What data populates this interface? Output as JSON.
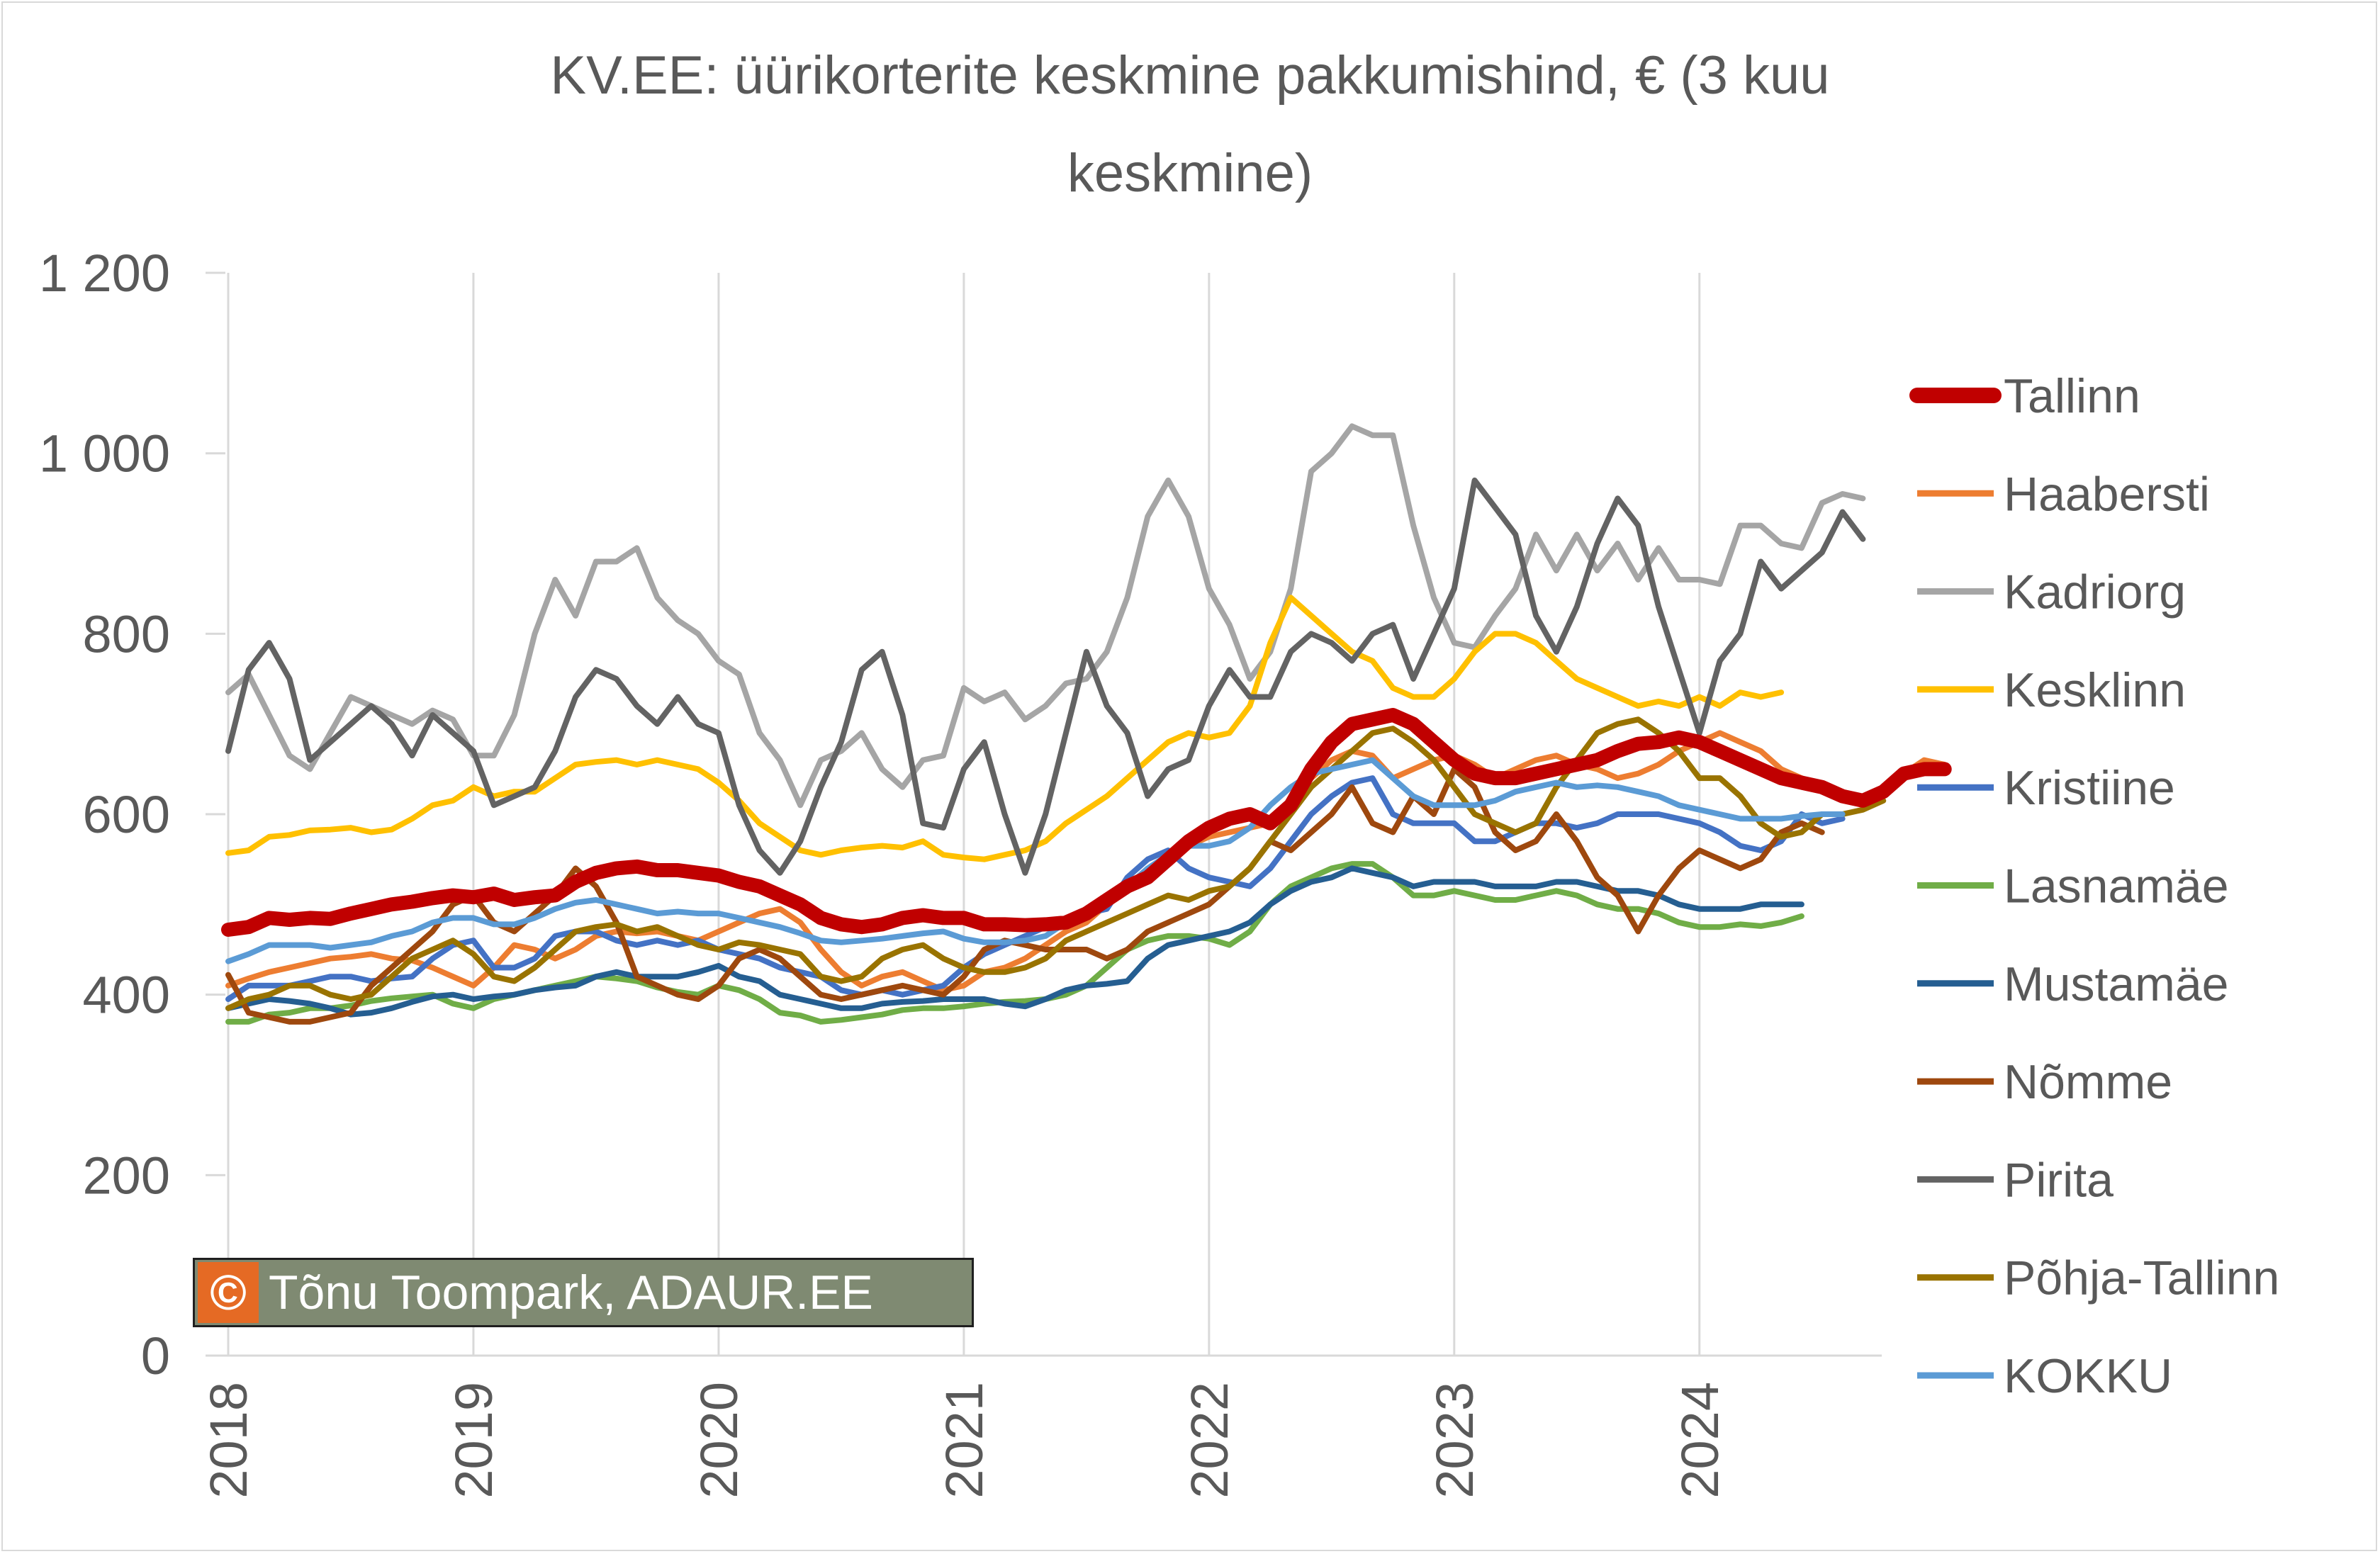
{
  "chart_data": {
    "type": "line",
    "title": "KV.EE: üürikorterite keskmine pakkumishind, € (3 kuu keskmine)",
    "title_lines": [
      "KV.EE: üürikorterite keskmine pakkumishind, € (3 kuu",
      "keskmine)"
    ],
    "xlabel": "",
    "ylabel": "",
    "x_start": "2018-01",
    "x_ticks": [
      "2018",
      "2019",
      "2020",
      "2021",
      "2022",
      "2023",
      "2024"
    ],
    "y_ticks": [
      "0",
      "200",
      "400",
      "600",
      "800",
      "1 000",
      "1 200"
    ],
    "ylim": [
      0,
      1200
    ],
    "grid": "vertical",
    "legend_position": "right",
    "series": [
      {
        "name": "Tallinn",
        "color": "#c00000",
        "width": "bold",
        "values": [
          472,
          475,
          485,
          483,
          485,
          484,
          490,
          495,
          500,
          503,
          507,
          510,
          508,
          512,
          505,
          508,
          510,
          525,
          535,
          540,
          542,
          538,
          538,
          535,
          532,
          525,
          520,
          510,
          500,
          485,
          478,
          475,
          478,
          485,
          488,
          485,
          485,
          478,
          478,
          477,
          478,
          480,
          490,
          505,
          520,
          530,
          550,
          570,
          585,
          595,
          600,
          590,
          610,
          650,
          680,
          700,
          705,
          710,
          700,
          680,
          660,
          645,
          640,
          640,
          645,
          650,
          655,
          660,
          670,
          678,
          680,
          685,
          680,
          670,
          660,
          650,
          640,
          635,
          630,
          620,
          615,
          625,
          645,
          650,
          650
        ]
      },
      {
        "name": "Haabersti",
        "color": "#ed7d31",
        "values": [
          410,
          418,
          425,
          430,
          435,
          440,
          442,
          445,
          440,
          438,
          430,
          420,
          410,
          430,
          455,
          450,
          440,
          450,
          465,
          470,
          468,
          470,
          465,
          460,
          470,
          480,
          490,
          495,
          480,
          450,
          425,
          410,
          420,
          425,
          415,
          405,
          410,
          425,
          430,
          440,
          455,
          470,
          480,
          500,
          515,
          525,
          545,
          565,
          575,
          580,
          585,
          590,
          610,
          640,
          660,
          670,
          665,
          640,
          650,
          660,
          665,
          655,
          640,
          650,
          660,
          665,
          655,
          650,
          640,
          645,
          655,
          670,
          680,
          690,
          680,
          670,
          650,
          640,
          630,
          625,
          615,
          625,
          645,
          660,
          655
        ]
      },
      {
        "name": "Kadriorg",
        "color": "#a5a5a5",
        "values": [
          735,
          755,
          710,
          665,
          650,
          690,
          730,
          720,
          710,
          700,
          715,
          705,
          665,
          665,
          710,
          800,
          860,
          820,
          880,
          880,
          895,
          840,
          815,
          800,
          770,
          755,
          690,
          660,
          610,
          660,
          670,
          690,
          650,
          630,
          660,
          665,
          740,
          725,
          735,
          705,
          720,
          745,
          750,
          780,
          840,
          930,
          970,
          930,
          850,
          810,
          750,
          780,
          850,
          980,
          1000,
          1030,
          1020,
          1020,
          920,
          840,
          790,
          785,
          820,
          850,
          910,
          870,
          910,
          870,
          900,
          860,
          895,
          860,
          860,
          855,
          920,
          920,
          900,
          895,
          945,
          955,
          950
        ]
      },
      {
        "name": "Kesklinn",
        "color": "#ffc000",
        "values": [
          557,
          560,
          575,
          577,
          582,
          583,
          585,
          580,
          583,
          595,
          610,
          615,
          630,
          620,
          625,
          625,
          640,
          655,
          658,
          660,
          655,
          660,
          655,
          650,
          635,
          615,
          590,
          575,
          560,
          555,
          560,
          563,
          565,
          563,
          570,
          555,
          552,
          550,
          555,
          560,
          570,
          590,
          605,
          620,
          640,
          660,
          680,
          690,
          685,
          690,
          720,
          790,
          840,
          820,
          800,
          780,
          770,
          740,
          730,
          730,
          750,
          780,
          800,
          800,
          790,
          770,
          750,
          740,
          730,
          720,
          725,
          720,
          730,
          720,
          735,
          730,
          735
        ]
      },
      {
        "name": "Kristiine",
        "color": "#4472c4",
        "values": [
          395,
          410,
          410,
          410,
          415,
          420,
          420,
          415,
          418,
          420,
          440,
          455,
          460,
          430,
          430,
          440,
          465,
          470,
          470,
          460,
          455,
          460,
          455,
          460,
          450,
          445,
          440,
          430,
          425,
          420,
          405,
          400,
          405,
          400,
          405,
          410,
          430,
          445,
          455,
          465,
          475,
          485,
          490,
          495,
          530,
          550,
          560,
          540,
          530,
          525,
          520,
          540,
          570,
          600,
          620,
          635,
          640,
          600,
          590,
          590,
          590,
          570,
          570,
          580,
          590,
          590,
          585,
          590,
          600,
          600,
          600,
          595,
          590,
          580,
          565,
          560,
          570,
          600,
          590,
          595
        ]
      },
      {
        "name": "Lasnamäe",
        "color": "#70ad47",
        "values": [
          370,
          370,
          378,
          380,
          385,
          385,
          388,
          393,
          396,
          398,
          400,
          390,
          385,
          395,
          400,
          405,
          410,
          415,
          420,
          418,
          415,
          408,
          403,
          400,
          410,
          405,
          395,
          380,
          377,
          370,
          372,
          375,
          378,
          383,
          385,
          385,
          387,
          390,
          392,
          393,
          395,
          400,
          410,
          430,
          450,
          460,
          465,
          465,
          462,
          455,
          470,
          500,
          520,
          530,
          540,
          545,
          545,
          530,
          510,
          510,
          515,
          510,
          505,
          505,
          510,
          515,
          510,
          500,
          495,
          495,
          490,
          480,
          475,
          475,
          478,
          476,
          480,
          487
        ]
      },
      {
        "name": "Mustamäe",
        "color": "#255e91",
        "values": [
          385,
          390,
          395,
          393,
          390,
          385,
          378,
          380,
          385,
          392,
          398,
          400,
          395,
          398,
          400,
          405,
          408,
          410,
          420,
          425,
          420,
          420,
          420,
          425,
          432,
          420,
          415,
          400,
          395,
          390,
          385,
          385,
          390,
          392,
          393,
          395,
          395,
          395,
          390,
          387,
          395,
          405,
          410,
          412,
          415,
          440,
          455,
          460,
          465,
          470,
          480,
          500,
          515,
          525,
          530,
          540,
          535,
          530,
          520,
          525,
          525,
          525,
          520,
          520,
          520,
          525,
          525,
          520,
          515,
          515,
          510,
          500,
          495,
          495,
          495,
          500,
          500,
          500
        ]
      },
      {
        "name": "Nõmme",
        "color": "#9e480e",
        "values": [
          422,
          380,
          375,
          370,
          370,
          375,
          380,
          410,
          430,
          450,
          470,
          500,
          510,
          480,
          470,
          490,
          510,
          540,
          520,
          480,
          420,
          410,
          400,
          395,
          410,
          440,
          450,
          440,
          420,
          400,
          395,
          400,
          405,
          410,
          405,
          400,
          420,
          450,
          460,
          455,
          450,
          450,
          450,
          440,
          450,
          470,
          480,
          490,
          500,
          520,
          540,
          570,
          560,
          580,
          600,
          630,
          590,
          580,
          620,
          600,
          650,
          630,
          580,
          560,
          570,
          600,
          570,
          530,
          510,
          470,
          510,
          540,
          560,
          550,
          540,
          550,
          580,
          590,
          580
        ]
      },
      {
        "name": "Pirita",
        "color": "#636363",
        "values": [
          670,
          760,
          790,
          750,
          660,
          680,
          700,
          720,
          700,
          665,
          710,
          690,
          670,
          610,
          620,
          630,
          670,
          730,
          760,
          750,
          720,
          700,
          730,
          700,
          690,
          610,
          560,
          535,
          570,
          630,
          680,
          760,
          780,
          710,
          590,
          585,
          650,
          680,
          600,
          535,
          600,
          690,
          780,
          720,
          690,
          620,
          650,
          660,
          720,
          760,
          730,
          730,
          780,
          800,
          790,
          770,
          800,
          810,
          750,
          800,
          850,
          970,
          940,
          910,
          820,
          780,
          830,
          900,
          950,
          920,
          830,
          760,
          690,
          770,
          800,
          880,
          850,
          870,
          890,
          935,
          905
        ]
      },
      {
        "name": "Põhja-Tallinn",
        "color": "#997300",
        "values": [
          385,
          395,
          400,
          410,
          410,
          400,
          395,
          400,
          420,
          440,
          450,
          460,
          445,
          420,
          415,
          430,
          450,
          470,
          475,
          478,
          470,
          475,
          465,
          455,
          450,
          458,
          455,
          450,
          445,
          420,
          415,
          420,
          440,
          450,
          455,
          440,
          430,
          425,
          425,
          430,
          440,
          460,
          470,
          480,
          490,
          500,
          510,
          505,
          515,
          520,
          540,
          570,
          600,
          630,
          650,
          670,
          690,
          695,
          680,
          660,
          630,
          600,
          590,
          580,
          590,
          630,
          660,
          690,
          700,
          705,
          690,
          670,
          640,
          640,
          620,
          590,
          575,
          580,
          600,
          600,
          605,
          615
        ]
      },
      {
        "name": "KOKKU",
        "color": "#5b9bd5",
        "values": [
          437,
          445,
          455,
          455,
          455,
          452,
          455,
          458,
          465,
          470,
          480,
          485,
          485,
          478,
          478,
          485,
          495,
          502,
          505,
          500,
          495,
          490,
          492,
          490,
          490,
          485,
          480,
          475,
          468,
          460,
          458,
          460,
          462,
          465,
          468,
          470,
          462,
          458,
          458,
          460,
          465,
          480,
          490,
          500,
          520,
          540,
          555,
          565,
          565,
          570,
          585,
          610,
          630,
          645,
          650,
          655,
          660,
          640,
          620,
          610,
          610,
          610,
          615,
          625,
          630,
          635,
          630,
          632,
          630,
          625,
          620,
          610,
          605,
          600,
          595,
          595,
          595,
          598,
          600,
          600
        ]
      }
    ]
  },
  "copyright": {
    "symbol": "©",
    "text": "Tõnu Toompark, ADAUR.EE"
  }
}
